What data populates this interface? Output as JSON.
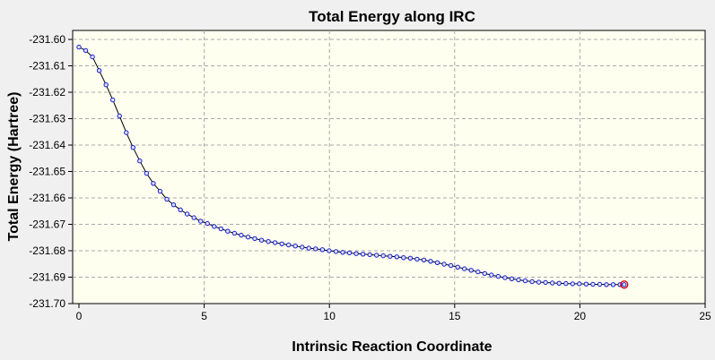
{
  "chart_data": {
    "type": "line",
    "title": "Total Energy along IRC",
    "xlabel": "Intrinsic Reaction Coordinate",
    "ylabel": "Total Energy (Hartree)",
    "xlim": [
      0,
      25
    ],
    "ylim": [
      -231.7,
      -231.6
    ],
    "x_ticks": [
      0,
      5,
      10,
      15,
      20,
      25
    ],
    "x_tick_labels": [
      "0",
      "5",
      "10",
      "15",
      "20",
      "25"
    ],
    "y_ticks": [
      -231.6,
      -231.61,
      -231.62,
      -231.63,
      -231.64,
      -231.65,
      -231.66,
      -231.67,
      -231.68,
      -231.69,
      -231.7
    ],
    "y_tick_labels": [
      "-231.60",
      "-231.61",
      "-231.62",
      "-231.63",
      "-231.64",
      "-231.65",
      "-231.66",
      "-231.67",
      "-231.68",
      "-231.69",
      "-231.70"
    ],
    "grid": true,
    "colors": {
      "line": "#000000",
      "marker": "#1a1acc",
      "highlight": "#e00000",
      "plot_background": "#fffff0",
      "frame_background": "#f0f0f0"
    },
    "series": [
      {
        "x": [
          0.0,
          0.27,
          0.54,
          0.81,
          1.08,
          1.35,
          1.62,
          1.89,
          2.16,
          2.43,
          2.7,
          2.97,
          3.24,
          3.51,
          3.78,
          4.05,
          4.32,
          4.59,
          4.86,
          5.13,
          5.4,
          5.67,
          5.94,
          6.21,
          6.48,
          6.75,
          7.02,
          7.29,
          7.56,
          7.83,
          8.1,
          8.37,
          8.64,
          8.91,
          9.18,
          9.45,
          9.72,
          9.99,
          10.26,
          10.53,
          10.8,
          11.07,
          11.34,
          11.61,
          11.88,
          12.15,
          12.42,
          12.69,
          12.96,
          13.23,
          13.5,
          13.77,
          14.04,
          14.31,
          14.58,
          14.85,
          15.12,
          15.39,
          15.66,
          15.93,
          16.2,
          16.47,
          16.74,
          17.01,
          17.28,
          17.55,
          17.82,
          18.09,
          18.36,
          18.63,
          18.9,
          19.17,
          19.44,
          19.71,
          19.98,
          20.25,
          20.52,
          20.79,
          21.06,
          21.33,
          21.6,
          21.77
        ],
        "y": [
          -231.6029,
          -231.6042,
          -231.6066,
          -231.6118,
          -231.6172,
          -231.6229,
          -231.629,
          -231.6353,
          -231.6409,
          -231.646,
          -231.6507,
          -231.6545,
          -231.6575,
          -231.6605,
          -231.6626,
          -231.6645,
          -231.6661,
          -231.6675,
          -231.6688,
          -231.6697,
          -231.6708,
          -231.6717,
          -231.6726,
          -231.6734,
          -231.6741,
          -231.6748,
          -231.6754,
          -231.676,
          -231.6765,
          -231.6769,
          -231.6774,
          -231.6778,
          -231.6782,
          -231.6786,
          -231.679,
          -231.6793,
          -231.6796,
          -231.68,
          -231.6803,
          -231.6806,
          -231.6808,
          -231.6811,
          -231.6813,
          -231.6815,
          -231.6817,
          -231.6819,
          -231.6821,
          -231.6823,
          -231.6826,
          -231.6828,
          -231.6832,
          -231.6835,
          -231.684,
          -231.6845,
          -231.6851,
          -231.6856,
          -231.6862,
          -231.6868,
          -231.6874,
          -231.688,
          -231.6886,
          -231.6892,
          -231.6897,
          -231.6902,
          -231.6906,
          -231.691,
          -231.6914,
          -231.6917,
          -231.6919,
          -231.692,
          -231.6922,
          -231.6923,
          -231.6924,
          -231.6925,
          -231.6925,
          -231.6926,
          -231.6927,
          -231.6927,
          -231.6928,
          -231.6928,
          -231.6928,
          -231.6928
        ],
        "highlight_index": 81
      }
    ]
  }
}
